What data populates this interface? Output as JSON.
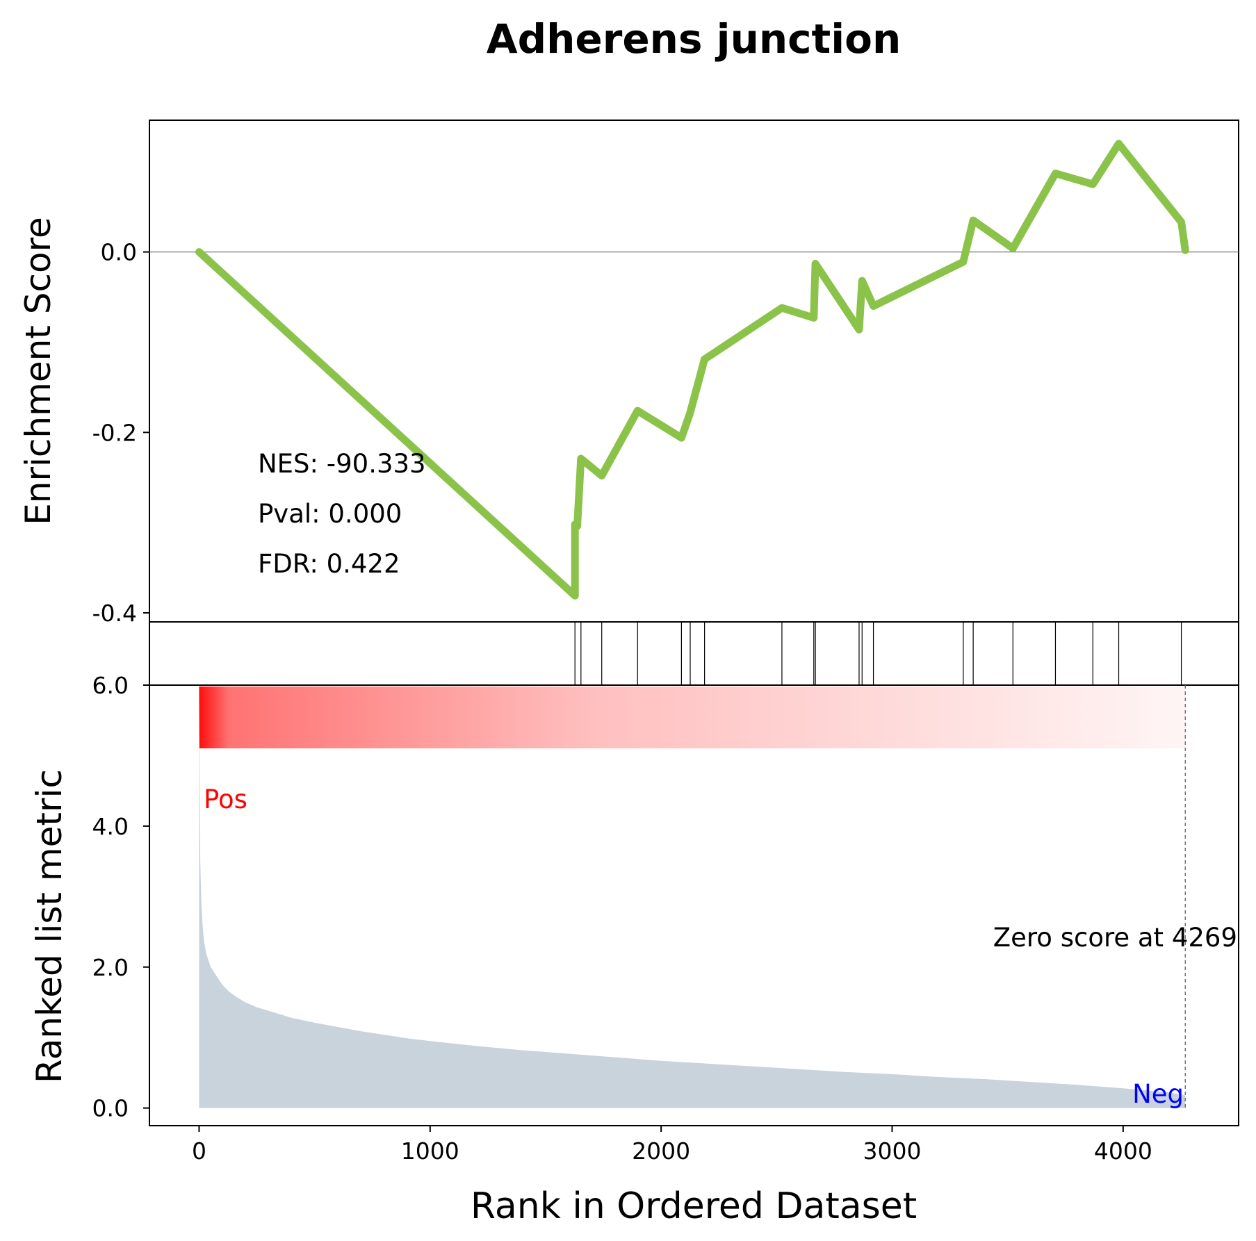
{
  "chart_data": {
    "type": "line",
    "title": "Adherens junction",
    "x_axis": {
      "label": "Rank in Ordered Dataset",
      "range": [
        -215,
        4500
      ],
      "ticks": [
        0,
        1000,
        2000,
        3000,
        4000
      ],
      "tick_labels": [
        "0",
        "1000",
        "2000",
        "3000",
        "4000"
      ]
    },
    "enrichment_panel": {
      "ylabel": "Enrichment Score",
      "ylim": [
        -0.41,
        0.146
      ],
      "yticks": [
        -0.4,
        -0.2,
        0.0
      ],
      "ytick_labels": [
        "-0.4",
        "-0.2",
        "0.0"
      ],
      "zero_line": true,
      "line_color": "#8bc34a",
      "stats": {
        "nes": "NES: -90.333",
        "pval": "Pval: 0.000",
        "fdr": "FDR: 0.422"
      },
      "series": [
        {
          "x": [
            0,
            1627,
            1627,
            1637,
            1637,
            1653,
            1653,
            1743,
            1743,
            1898,
            1898,
            2088,
            2088,
            2126,
            2126,
            2188,
            2188,
            2523,
            2523,
            2661,
            2661,
            2668,
            2668,
            2857,
            2857,
            2870,
            2870,
            2919,
            2919,
            3308,
            3308,
            3351,
            3351,
            3523,
            3523,
            3707,
            3707,
            3869,
            3869,
            3981,
            3981,
            4252,
            4252,
            4269
          ],
          "y": [
            0.0,
            -0.381,
            -0.302,
            -0.304,
            -0.304,
            -0.229,
            -0.229,
            -0.248,
            -0.248,
            -0.176,
            -0.176,
            -0.206,
            -0.206,
            -0.178,
            -0.178,
            -0.119,
            -0.119,
            -0.062,
            -0.062,
            -0.073,
            -0.073,
            -0.013,
            -0.013,
            -0.086,
            -0.086,
            -0.032,
            -0.032,
            -0.06,
            -0.06,
            -0.011,
            -0.011,
            0.035,
            0.035,
            0.004,
            0.004,
            0.087,
            0.087,
            0.075,
            0.075,
            0.12,
            0.12,
            0.033,
            0.033,
            0.002
          ]
        }
      ]
    },
    "hits": [
      1627,
      1653,
      1743,
      1898,
      2088,
      2126,
      2188,
      2523,
      2661,
      2668,
      2857,
      2870,
      2919,
      3308,
      3351,
      3523,
      3707,
      3869,
      3981,
      4252
    ],
    "ranked_panel": {
      "ylabel": "Ranked list metric",
      "ylim": [
        -0.25,
        6.0
      ],
      "yticks": [
        0,
        2,
        4,
        6
      ],
      "ytick_labels": [
        "0.0",
        "2.0",
        "4.0",
        "6.0"
      ],
      "fill_color": "#c8d3dc",
      "pos_label": "Pos",
      "pos_color": "#ff0000",
      "neg_label": "Neg",
      "neg_color": "#0000ff",
      "zero_score_label": "Zero score at 4269",
      "zero_score_rank": 4269,
      "heatbar_color": "#ff0000",
      "series": [
        {
          "x": [
            0,
            5,
            10,
            15,
            20,
            30,
            40,
            50,
            60,
            80,
            100,
            130,
            160,
            200,
            250,
            300,
            350,
            400,
            500,
            600,
            700,
            800,
            900,
            1000,
            1200,
            1400,
            1600,
            1800,
            2000,
            2200,
            2400,
            2600,
            2800,
            3000,
            3200,
            3400,
            3600,
            3800,
            4000,
            4200,
            4269
          ],
          "y": [
            5.85,
            3.5,
            2.9,
            2.6,
            2.4,
            2.2,
            2.1,
            2.0,
            1.95,
            1.85,
            1.75,
            1.65,
            1.58,
            1.5,
            1.43,
            1.38,
            1.33,
            1.28,
            1.21,
            1.15,
            1.09,
            1.04,
            0.99,
            0.95,
            0.88,
            0.82,
            0.77,
            0.72,
            0.67,
            0.63,
            0.59,
            0.55,
            0.51,
            0.48,
            0.44,
            0.41,
            0.37,
            0.33,
            0.28,
            0.22,
            0.18
          ]
        }
      ]
    }
  }
}
